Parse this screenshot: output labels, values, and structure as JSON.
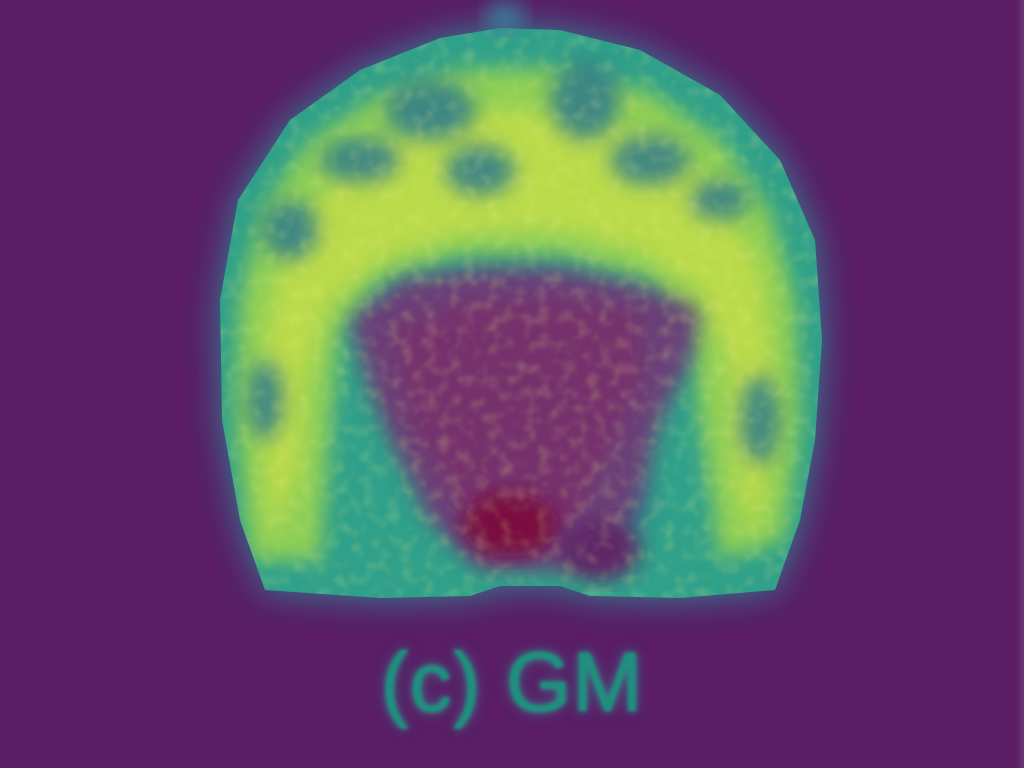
{
  "image": {
    "subject": "brain-coronal-slice-heatmap",
    "colormap": "viridis",
    "colors": {
      "background": "#5a1d66",
      "low": "#2a6f8a",
      "mid": "#2fa08a",
      "high": "#b8d84a",
      "peak": "#d6e43a",
      "core": "#6b2d6e",
      "core_dark": "#7a1040",
      "caption": "#1f8f7e"
    }
  },
  "caption": {
    "text": "(c) GM"
  }
}
